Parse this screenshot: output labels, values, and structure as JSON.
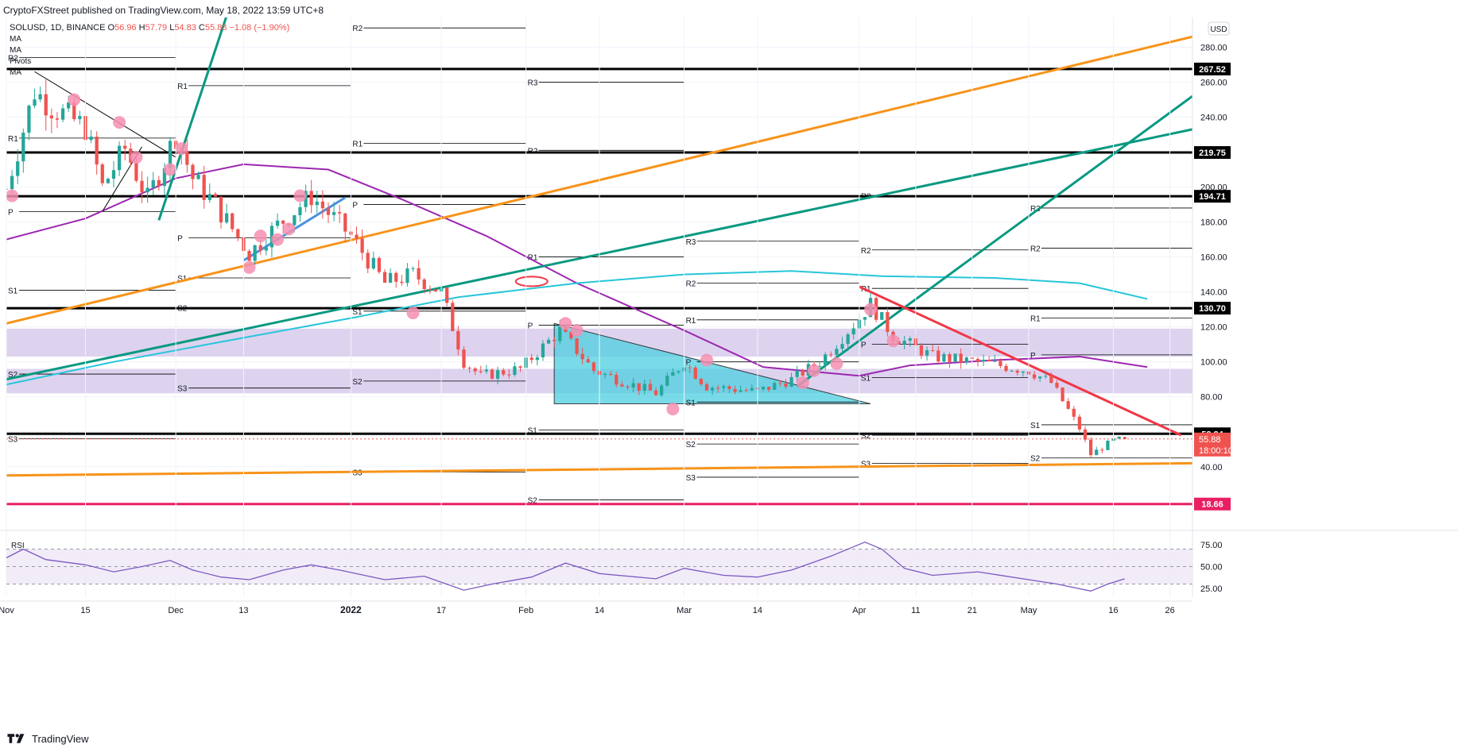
{
  "header": {
    "published": "CryptoFXStreet published on TradingView.com, May 18, 2022 13:59 UTC+8"
  },
  "legend": {
    "symbol": "SOLUSD, 1D, BINANCE",
    "o_label": "O",
    "o_value": "56.96",
    "h_label": "H",
    "h_value": "57.79",
    "l_label": "L",
    "l_value": "54.83",
    "c_label": "C",
    "c_value": "55.88",
    "change": "−1.08 (−1.90%)",
    "indicators": [
      "MA",
      "MA",
      "Pivots",
      "MA"
    ]
  },
  "currency_button": "USD",
  "footer": {
    "brand": "TradingView"
  },
  "colors": {
    "up": "#26a69a",
    "down": "#ef5350",
    "ma_purple": "#9c27b0",
    "ma_cyan": "#26c6da",
    "orange": "#f7931a",
    "teal_line": "#089981",
    "red_line": "#f23645",
    "zone": "#d1c4e9",
    "triangle": "#4dd0e1",
    "level_black": "#000000",
    "magenta": "#e91e63",
    "rsi": "#7e57c2",
    "circle": "#f48fb1"
  },
  "chart_data": [
    {
      "type": "candlestick",
      "title": "SOLUSD, 1D, BINANCE",
      "x_ticks": [
        "Nov",
        "15",
        "Dec",
        "13",
        "2022",
        "17",
        "Feb",
        "14",
        "Mar",
        "14",
        "Apr",
        "11",
        "21",
        "May",
        "16",
        "26"
      ],
      "y_ticks": [
        280,
        260,
        240,
        220,
        200,
        180,
        160,
        140,
        120,
        100,
        80,
        60,
        40
      ],
      "y_tick_labels": [
        "280.00",
        "260.00",
        "240.00",
        "220.00",
        "200.00",
        "180.00",
        "160.00",
        "140.00",
        "120.00",
        "100.00",
        "80.00",
        "60.00",
        "40.00"
      ],
      "ylim": [
        4,
        297
      ],
      "date_range": [
        "2021-11-01",
        "2022-05-30"
      ],
      "ohlc_waypoints": [
        [
          "2021-11-01",
          199
        ],
        [
          "2021-11-06",
          255
        ],
        [
          "2021-11-09",
          246
        ],
        [
          "2021-11-15",
          234
        ],
        [
          "2021-11-18",
          200
        ],
        [
          "2021-11-22",
          222
        ],
        [
          "2021-11-26",
          193
        ],
        [
          "2021-12-01",
          230
        ],
        [
          "2021-12-04",
          205
        ],
        [
          "2021-12-08",
          190
        ],
        [
          "2021-12-14",
          162
        ],
        [
          "2021-12-19",
          178
        ],
        [
          "2021-12-25",
          195
        ],
        [
          "2022-01-01",
          172
        ],
        [
          "2022-01-07",
          145
        ],
        [
          "2022-01-12",
          150
        ],
        [
          "2022-01-17",
          140
        ],
        [
          "2022-01-21",
          100
        ],
        [
          "2022-01-24",
          92
        ],
        [
          "2022-01-31",
          96
        ],
        [
          "2022-02-07",
          118
        ],
        [
          "2022-02-13",
          95
        ],
        [
          "2022-02-24",
          82
        ],
        [
          "2022-03-01",
          100
        ],
        [
          "2022-03-05",
          86
        ],
        [
          "2022-03-14",
          83
        ],
        [
          "2022-03-20",
          90
        ],
        [
          "2022-03-25",
          100
        ],
        [
          "2022-04-01",
          125
        ],
        [
          "2022-04-03",
          133
        ],
        [
          "2022-04-07",
          115
        ],
        [
          "2022-04-14",
          103
        ],
        [
          "2022-04-24",
          99
        ],
        [
          "2022-05-01",
          95
        ],
        [
          "2022-05-05",
          88
        ],
        [
          "2022-05-10",
          62
        ],
        [
          "2022-05-12",
          47
        ],
        [
          "2022-05-16",
          55
        ],
        [
          "2022-05-18",
          56
        ]
      ],
      "last_candle": {
        "date": "2022-05-18",
        "o": 56.96,
        "h": 57.79,
        "l": 54.83,
        "c": 55.88
      },
      "moving_averages": [
        {
          "color": "#9c27b0",
          "points": [
            [
              "2021-11-01",
              170
            ],
            [
              "2021-11-15",
              182
            ],
            [
              "2021-12-01",
              205
            ],
            [
              "2021-12-13",
              213
            ],
            [
              "2021-12-28",
              210
            ],
            [
              "2022-01-10",
              193
            ],
            [
              "2022-01-25",
              172
            ],
            [
              "2022-02-10",
              145
            ],
            [
              "2022-03-01",
              118
            ],
            [
              "2022-03-15",
              97
            ],
            [
              "2022-04-01",
              92
            ],
            [
              "2022-04-10",
              98
            ],
            [
              "2022-04-25",
              101
            ],
            [
              "2022-05-10",
              103
            ],
            [
              "2022-05-22",
              97
            ]
          ]
        },
        {
          "color": "#26c6da",
          "points": [
            [
              "2021-11-01",
              87
            ],
            [
              "2021-11-20",
              100
            ],
            [
              "2021-12-10",
              112
            ],
            [
              "2022-01-01",
              125
            ],
            [
              "2022-01-20",
              137
            ],
            [
              "2022-02-10",
              145
            ],
            [
              "2022-03-01",
              150
            ],
            [
              "2022-03-20",
              152
            ],
            [
              "2022-04-05",
              149
            ],
            [
              "2022-04-25",
              148
            ],
            [
              "2022-05-10",
              145
            ],
            [
              "2022-05-22",
              136
            ]
          ]
        }
      ],
      "key_levels": [
        {
          "value": 267.52,
          "label": "267.52",
          "color": "#000000"
        },
        {
          "value": 219.75,
          "label": "219.75",
          "color": "#000000"
        },
        {
          "value": 194.71,
          "label": "194.71",
          "color": "#000000"
        },
        {
          "value": 130.7,
          "label": "130.70",
          "color": "#000000"
        },
        {
          "value": 58.84,
          "label": "58.84",
          "color": "#000000"
        },
        {
          "value": 18.66,
          "label": "18.66",
          "color": "#e91e63"
        }
      ],
      "current_price": {
        "value": 55.88,
        "label": "55.88",
        "countdown": "18:00:10"
      },
      "zones": [
        [
          103,
          119
        ],
        [
          82,
          96
        ]
      ],
      "pivot_labels": [
        "R2",
        "R1",
        "P",
        "S1",
        "S2",
        "S3",
        "R3"
      ],
      "pivot_blocks": [
        {
          "from": "2021-11-01",
          "to": "2021-12-01",
          "labels": {
            "R2": 274,
            "R1": 228,
            "P": 186,
            "S1": 141,
            "S2": 93,
            "S3": 56
          }
        },
        {
          "from": "2021-12-01",
          "to": "2022-01-01",
          "labels": {
            "R1": 258,
            "P": 171,
            "S1": 148,
            "S2": 131,
            "S3": 85
          }
        },
        {
          "from": "2022-01-01",
          "to": "2022-02-01",
          "labels": {
            "R2": 291,
            "R1": 225,
            "P": 190,
            "S1": 129,
            "S2": 89,
            "S3": 37
          }
        },
        {
          "from": "2022-02-01",
          "to": "2022-03-01",
          "labels": {
            "R3": 260,
            "R2": 221,
            "R1": 160,
            "P": 121,
            "S1": 61,
            "S2": 21
          }
        },
        {
          "from": "2022-03-01",
          "to": "2022-04-01",
          "labels": {
            "R3": 169,
            "R2": 145,
            "R1": 124,
            "P": 100,
            "S1": 77,
            "S2": 53,
            "S3": 34
          }
        },
        {
          "from": "2022-04-01",
          "to": "2022-05-01",
          "labels": {
            "R3": 195,
            "R2": 164,
            "R1": 142,
            "P": 110,
            "S1": 91,
            "S2": 58,
            "S3": 42
          }
        },
        {
          "from": "2022-05-01",
          "to": "2022-05-30",
          "labels": {
            "R3": 188,
            "R2": 165,
            "R1": 125,
            "P": 104,
            "S1": 64,
            "S2": 45
          }
        }
      ],
      "trendlines": [
        {
          "color": "#f7931a",
          "from": [
            "2021-11-01",
            122
          ],
          "to": [
            "2022-05-30",
            286
          ]
        },
        {
          "color": "#089981",
          "from": [
            "2021-11-01",
            90
          ],
          "to": [
            "2022-05-30",
            233
          ]
        },
        {
          "color": "#089981",
          "from": [
            "2021-11-28",
            181
          ],
          "to": [
            "2021-12-10",
            298
          ]
        },
        {
          "color": "#089981",
          "from": [
            "2022-03-21",
            86
          ],
          "to": [
            "2022-05-30",
            252
          ]
        },
        {
          "color": "#f23645",
          "from": [
            "2022-04-01",
            143
          ],
          "to": [
            "2022-05-28",
            58
          ]
        },
        {
          "color": "#f7931a",
          "from": [
            "2021-11-01",
            35
          ],
          "to": [
            "2022-05-30",
            42
          ]
        },
        {
          "color": "#4a90e2",
          "from": [
            "2021-12-13",
            158
          ],
          "to": [
            "2021-12-31",
            194
          ]
        },
        {
          "color": "#000000",
          "from": [
            "2021-11-06",
            266
          ],
          "to": [
            "2021-12-01",
            217
          ]
        },
        {
          "color": "#000000",
          "from": [
            "2021-11-18",
            186
          ],
          "to": [
            "2021-11-25",
            223
          ]
        }
      ],
      "triangle": {
        "points": [
          [
            "2022-02-06",
            122
          ],
          [
            "2022-02-06",
            76
          ],
          [
            "2022-04-03",
            76
          ]
        ]
      }
    },
    {
      "type": "line",
      "title": "RSI",
      "y_ticks": [
        75,
        50,
        25
      ],
      "y_tick_labels": [
        "75.00",
        "50.00",
        "25.00"
      ],
      "ylim": [
        15,
        85
      ],
      "band": [
        30,
        70
      ],
      "values": [
        [
          "2021-11-01",
          60
        ],
        [
          "2021-11-04",
          70
        ],
        [
          "2021-11-08",
          58
        ],
        [
          "2021-11-15",
          52
        ],
        [
          "2021-11-20",
          44
        ],
        [
          "2021-11-25",
          50
        ],
        [
          "2021-11-30",
          57
        ],
        [
          "2021-12-04",
          46
        ],
        [
          "2021-12-09",
          38
        ],
        [
          "2021-12-14",
          35
        ],
        [
          "2021-12-20",
          46
        ],
        [
          "2021-12-25",
          52
        ],
        [
          "2021-12-30",
          46
        ],
        [
          "2022-01-07",
          35
        ],
        [
          "2022-01-14",
          39
        ],
        [
          "2022-01-21",
          23
        ],
        [
          "2022-01-26",
          30
        ],
        [
          "2022-02-02",
          38
        ],
        [
          "2022-02-08",
          54
        ],
        [
          "2022-02-14",
          42
        ],
        [
          "2022-02-24",
          36
        ],
        [
          "2022-03-01",
          48
        ],
        [
          "2022-03-08",
          40
        ],
        [
          "2022-03-14",
          38
        ],
        [
          "2022-03-20",
          46
        ],
        [
          "2022-03-27",
          62
        ],
        [
          "2022-04-02",
          78
        ],
        [
          "2022-04-05",
          70
        ],
        [
          "2022-04-09",
          48
        ],
        [
          "2022-04-14",
          40
        ],
        [
          "2022-04-22",
          44
        ],
        [
          "2022-04-30",
          36
        ],
        [
          "2022-05-06",
          30
        ],
        [
          "2022-05-12",
          22
        ],
        [
          "2022-05-15",
          30
        ],
        [
          "2022-05-18",
          36
        ]
      ]
    }
  ]
}
